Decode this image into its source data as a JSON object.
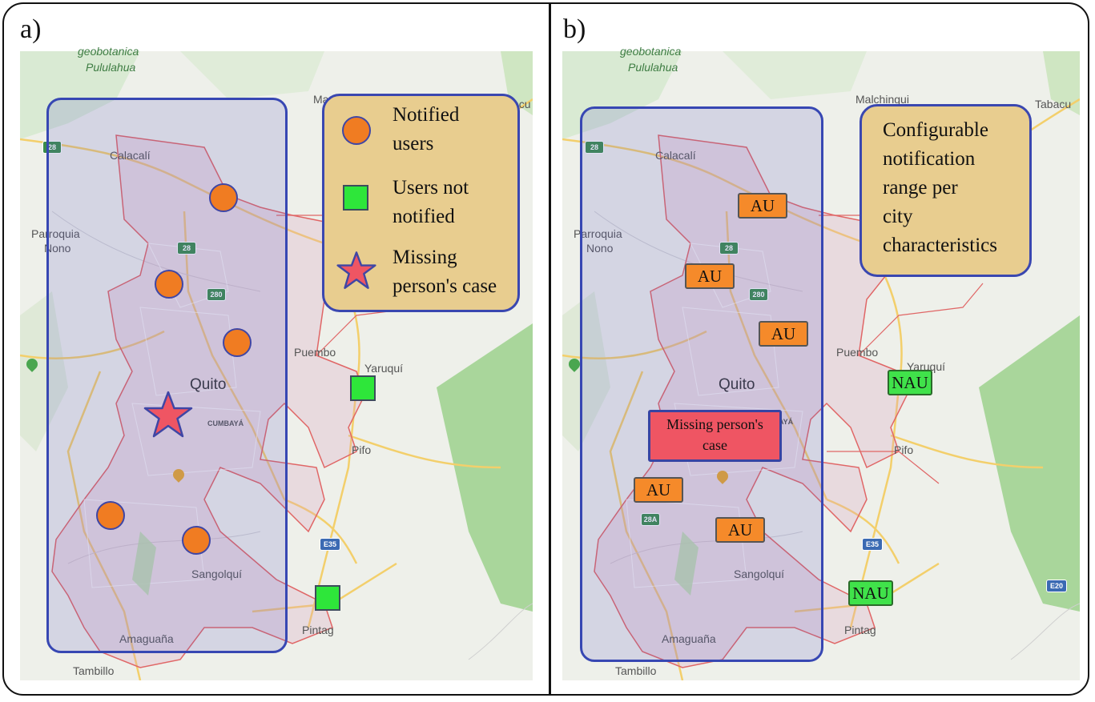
{
  "panel_a": {
    "label": "a)",
    "places": {
      "geobotanica": "geobotanica",
      "pululahua": "Pululahua",
      "calacali": "Calacalí",
      "parroquia": "Parroquia",
      "nono": "Nono",
      "quito": "Quito",
      "cumbaya": "CUMBAYÁ",
      "puembo": "Puembo",
      "yaruqui": "Yaruquí",
      "pifo": "Pifo",
      "sangolqui": "Sangolquí",
      "amaguana": "Amaguaña",
      "tambillo": "Tambillo",
      "pintag": "Pintag",
      "malchingui": "Ma",
      "tabacu": "acu"
    },
    "shields": {
      "r28a": "28",
      "r28b": "28",
      "r280": "280",
      "e35": "E35"
    },
    "legend": {
      "notified": "Notified",
      "notified2": "users",
      "not_notified": "Users not",
      "not_notified2": "notified",
      "missing": "Missing",
      "missing2": "person's case"
    }
  },
  "panel_b": {
    "label": "b)",
    "places": {
      "geobotanica": "geobotanica",
      "pululahua": "Pululahua",
      "malchingui": "Malchingui",
      "tabacu": "Tabacu",
      "calacali": "Calacalí",
      "parroquia": "Parroquia",
      "nono": "Nono",
      "quito": "Quito",
      "puembo": "Puembo",
      "yaruqui": "Yaruquí",
      "pifo": "Pifo",
      "sangolqui": "Sangolquí",
      "amaguana": "Amaguaña",
      "tambillo": "Tambillo",
      "pintag": "Pintag",
      "aya": "AYÁ"
    },
    "shields": {
      "r28a": "28",
      "r28b": "28",
      "r280": "280",
      "r28A": "28A",
      "e35": "E35",
      "e20": "E20"
    },
    "legend": {
      "l1": "Configurable",
      "l2": "notification",
      "l3": "range per",
      "l4": "city",
      "l5": "characteristics"
    },
    "au_label": "AU",
    "nau_label": "NAU",
    "missing1": "Missing person's",
    "missing2": "case"
  },
  "colors": {
    "range_border": "#3747b3",
    "notified_user": "#f07c22",
    "not_notified_user": "#2ee63a",
    "missing_case": "#ef5563",
    "legend_bg": "#e8cd8f"
  }
}
